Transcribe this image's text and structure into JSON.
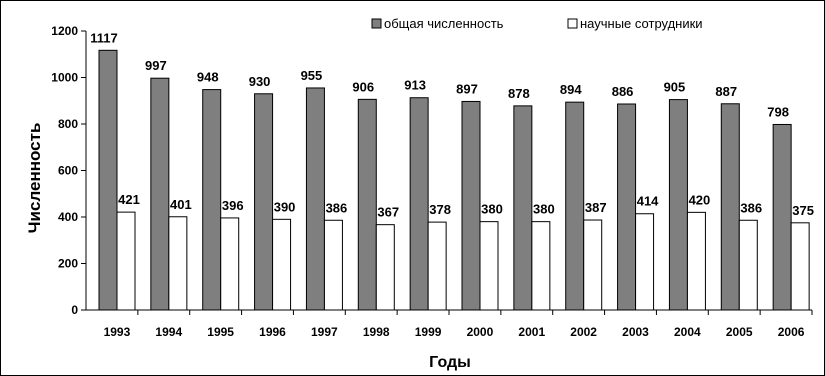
{
  "chart_data": {
    "type": "bar",
    "title": "",
    "xlabel": "Годы",
    "ylabel": "Численность",
    "ylim": [
      0,
      1200
    ],
    "ytick_step": 200,
    "grid": false,
    "legend_position": "top-right",
    "categories": [
      "1993",
      "1994",
      "1995",
      "1996",
      "1997",
      "1998",
      "1999",
      "2000",
      "2001",
      "2002",
      "2003",
      "2004",
      "2005",
      "2006"
    ],
    "series": [
      {
        "name": "общая численность",
        "color": "#7f7f7f",
        "values": [
          1117,
          997,
          948,
          930,
          955,
          906,
          913,
          897,
          878,
          894,
          886,
          905,
          887,
          798
        ]
      },
      {
        "name": "научные сотрудники",
        "color": "#ffffff",
        "values": [
          421,
          401,
          396,
          390,
          386,
          367,
          378,
          380,
          380,
          387,
          414,
          420,
          386,
          375
        ]
      }
    ]
  }
}
